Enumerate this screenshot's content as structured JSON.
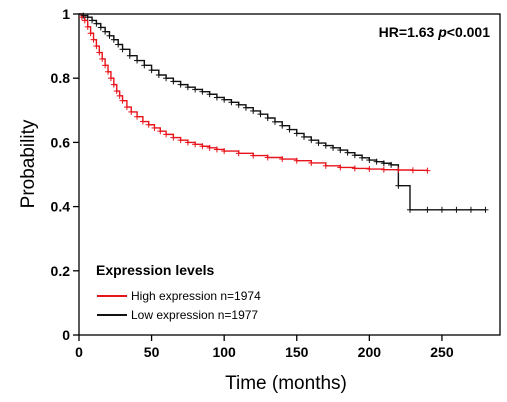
{
  "chart_data": {
    "type": "line",
    "title": "",
    "xlabel": "Time (months)",
    "ylabel": "Probability",
    "xlim": [
      0,
      290
    ],
    "ylim": [
      0,
      1
    ],
    "xticks": [
      "0",
      "50",
      "100",
      "150",
      "200",
      "250"
    ],
    "yticks": [
      "0",
      "0.2",
      "0.4",
      "0.6",
      "0.8",
      "1"
    ],
    "annotation": {
      "hr_text": "HR=1.63 ",
      "p_text": "p",
      "p_value_text": "<0.001"
    },
    "legend": {
      "title": "Expression levels",
      "placement": "bottom-left"
    },
    "grid": false,
    "series": [
      {
        "name": "High expression n=1974",
        "color": "#e8141b",
        "step_x": [
          0,
          2,
          4,
          6,
          8,
          10,
          12,
          14,
          16,
          18,
          20,
          22,
          24,
          26,
          28,
          30,
          33,
          36,
          40,
          44,
          48,
          52,
          56,
          60,
          65,
          70,
          75,
          80,
          85,
          90,
          95,
          100,
          110,
          120,
          130,
          140,
          150,
          160,
          170,
          180,
          190,
          200,
          210,
          220,
          230,
          240
        ],
        "step_y": [
          1.0,
          0.99,
          0.98,
          0.96,
          0.94,
          0.92,
          0.9,
          0.88,
          0.86,
          0.84,
          0.82,
          0.8,
          0.78,
          0.76,
          0.745,
          0.73,
          0.71,
          0.695,
          0.68,
          0.665,
          0.655,
          0.645,
          0.635,
          0.625,
          0.615,
          0.607,
          0.6,
          0.594,
          0.588,
          0.583,
          0.578,
          0.573,
          0.566,
          0.559,
          0.553,
          0.548,
          0.543,
          0.536,
          0.527,
          0.522,
          0.519,
          0.517,
          0.515,
          0.514,
          0.513,
          0.512
        ]
      },
      {
        "name": "Low expression n=1977",
        "color": "#111111",
        "step_x": [
          0,
          3,
          6,
          9,
          12,
          15,
          18,
          21,
          24,
          27,
          30,
          35,
          40,
          45,
          50,
          55,
          60,
          65,
          70,
          75,
          80,
          85,
          90,
          95,
          100,
          105,
          110,
          115,
          120,
          125,
          130,
          135,
          140,
          145,
          150,
          155,
          160,
          165,
          170,
          175,
          180,
          185,
          190,
          195,
          200,
          205,
          210,
          215,
          220,
          228,
          240,
          250,
          260,
          270,
          280
        ],
        "step_y": [
          1.0,
          0.995,
          0.99,
          0.98,
          0.97,
          0.958,
          0.945,
          0.932,
          0.92,
          0.905,
          0.89,
          0.87,
          0.855,
          0.84,
          0.825,
          0.81,
          0.8,
          0.79,
          0.78,
          0.772,
          0.765,
          0.758,
          0.75,
          0.74,
          0.733,
          0.725,
          0.717,
          0.708,
          0.698,
          0.688,
          0.676,
          0.664,
          0.652,
          0.64,
          0.628,
          0.617,
          0.607,
          0.598,
          0.59,
          0.583,
          0.576,
          0.568,
          0.56,
          0.552,
          0.545,
          0.54,
          0.535,
          0.53,
          0.465,
          0.39,
          0.39,
          0.39,
          0.39,
          0.39,
          0.39
        ]
      }
    ]
  }
}
